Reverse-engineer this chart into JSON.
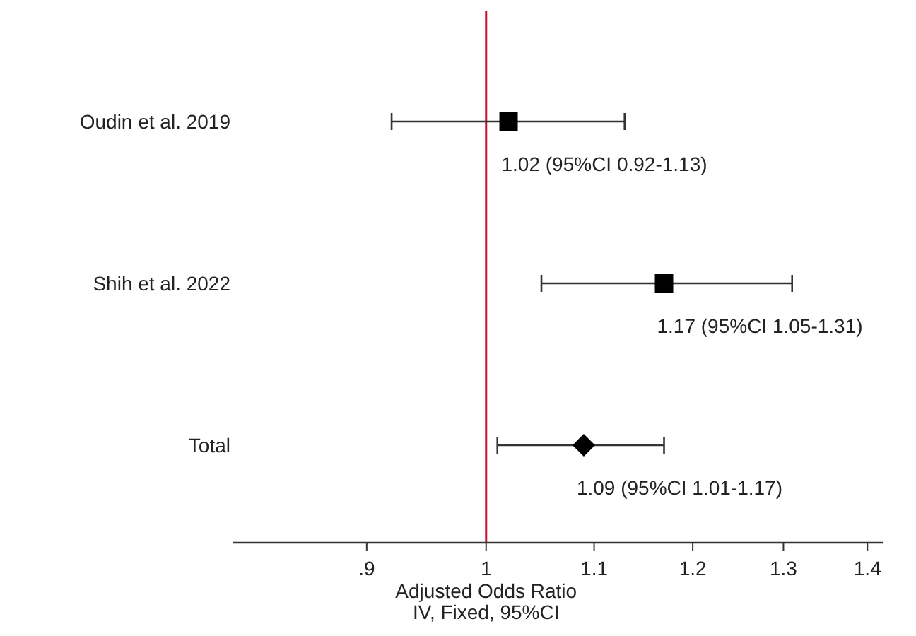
{
  "chart_data": {
    "type": "scatter",
    "orientation": "horizontal",
    "categories": [
      "Oudin et al. 2019",
      "Shih et al. 2022",
      "Total"
    ],
    "series": [
      {
        "color": "#000000",
        "marker": "square",
        "values": [
          1.02,
          1.17,
          null
        ],
        "errors": [
          [
            0.92,
            1.13
          ],
          [
            1.05,
            1.31
          ],
          null
        ],
        "value_labels": [
          "1.02 (95%CI 0.92-1.13)",
          "1.17 (95%CI 1.05-1.31)",
          null
        ]
      },
      {
        "color": "#000000",
        "marker": "diamond",
        "values": [
          null,
          null,
          1.09
        ],
        "errors": [
          null,
          null,
          [
            1.01,
            1.17
          ]
        ],
        "value_labels": [
          null,
          null,
          "1.09 (95%CI 1.01-1.17)"
        ]
      }
    ],
    "xlim": [
      0.8,
      1.42
    ],
    "xticks": [
      {
        "value": 0.9,
        "label": ".9"
      },
      1,
      1.1,
      1.2,
      1.3,
      1.4
    ],
    "log": "x",
    "xlabel": "Adjusted Odds Ratio\nIV, Fixed, 95%CI",
    "ref_lines": [
      {
        "axis": "x",
        "value": 1,
        "color": "#c8102e"
      }
    ],
    "grid": false
  }
}
